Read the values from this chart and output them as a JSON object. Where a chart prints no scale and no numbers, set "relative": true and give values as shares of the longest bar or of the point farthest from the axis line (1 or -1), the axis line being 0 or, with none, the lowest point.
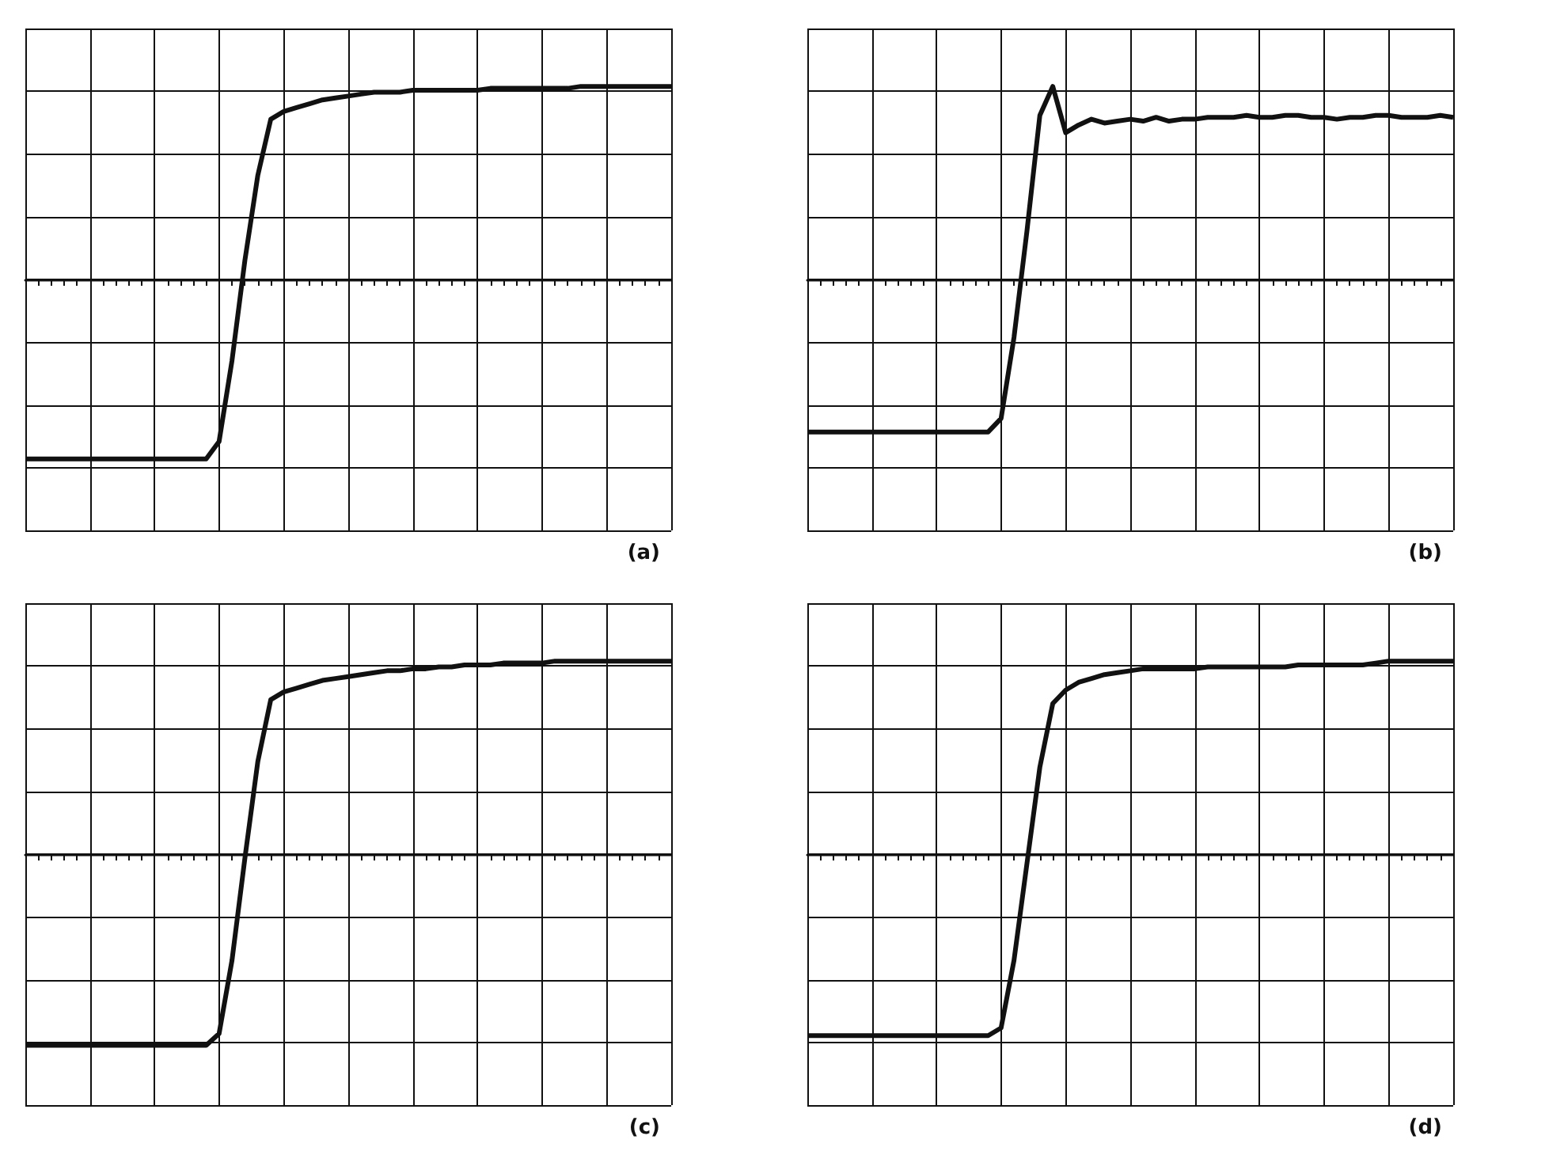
{
  "chart_data": [
    {
      "type": "line",
      "title": "(a)",
      "relative": true,
      "grid": true,
      "marker": "none",
      "categories": [
        null,
        null,
        null,
        null,
        null,
        null,
        null,
        null,
        null,
        null,
        null,
        null,
        null,
        null,
        null,
        null,
        null,
        null,
        null,
        null,
        null,
        null,
        null,
        null,
        null,
        null,
        null,
        null,
        null,
        null,
        null,
        null,
        null,
        null,
        null,
        null,
        null,
        null,
        null,
        null,
        null,
        null,
        null,
        null,
        null,
        null,
        null,
        null,
        null,
        null,
        null
      ],
      "series": [
        {
          "color": "#111111",
          "values": [
            -0.93,
            -0.93,
            -0.93,
            -0.93,
            -0.93,
            -0.93,
            -0.93,
            -0.93,
            -0.93,
            -0.93,
            -0.93,
            -0.93,
            -0.93,
            -0.93,
            -0.93,
            -0.84,
            -0.42,
            0.1,
            0.54,
            0.83,
            0.87,
            0.89,
            0.91,
            0.93,
            0.94,
            0.95,
            0.96,
            0.97,
            0.97,
            0.97,
            0.98,
            0.98,
            0.98,
            0.98,
            0.98,
            0.98,
            0.99,
            0.99,
            0.99,
            0.99,
            0.99,
            0.99,
            0.99,
            1.0,
            1.0,
            1.0,
            1.0,
            1.0,
            1.0,
            1.0,
            1.0
          ]
        }
      ]
    },
    {
      "type": "line",
      "title": "(b)",
      "relative": true,
      "grid": true,
      "marker": "none",
      "categories": [
        null,
        null,
        null,
        null,
        null,
        null,
        null,
        null,
        null,
        null,
        null,
        null,
        null,
        null,
        null,
        null,
        null,
        null,
        null,
        null,
        null,
        null,
        null,
        null,
        null,
        null,
        null,
        null,
        null,
        null,
        null,
        null,
        null,
        null,
        null,
        null,
        null,
        null,
        null,
        null,
        null,
        null,
        null,
        null,
        null,
        null,
        null,
        null,
        null,
        null,
        null
      ],
      "series": [
        {
          "color": "#111111",
          "values": [
            -0.79,
            -0.79,
            -0.79,
            -0.79,
            -0.79,
            -0.79,
            -0.79,
            -0.79,
            -0.79,
            -0.79,
            -0.79,
            -0.79,
            -0.79,
            -0.79,
            -0.79,
            -0.72,
            -0.3,
            0.25,
            0.85,
            1.0,
            0.76,
            0.8,
            0.83,
            0.81,
            0.82,
            0.83,
            0.82,
            0.84,
            0.82,
            0.83,
            0.83,
            0.84,
            0.84,
            0.84,
            0.85,
            0.84,
            0.84,
            0.85,
            0.85,
            0.84,
            0.84,
            0.83,
            0.84,
            0.84,
            0.85,
            0.85,
            0.84,
            0.84,
            0.84,
            0.85,
            0.84
          ]
        }
      ]
    },
    {
      "type": "line",
      "title": "(c)",
      "relative": true,
      "grid": true,
      "marker": "none",
      "categories": [
        null,
        null,
        null,
        null,
        null,
        null,
        null,
        null,
        null,
        null,
        null,
        null,
        null,
        null,
        null,
        null,
        null,
        null,
        null,
        null,
        null,
        null,
        null,
        null,
        null,
        null,
        null,
        null,
        null,
        null,
        null,
        null,
        null,
        null,
        null,
        null,
        null,
        null,
        null,
        null,
        null,
        null,
        null,
        null,
        null,
        null,
        null,
        null,
        null,
        null,
        null
      ],
      "series": [
        {
          "color": "#111111",
          "values": [
            -0.99,
            -0.99,
            -0.99,
            -0.99,
            -0.99,
            -0.99,
            -0.99,
            -0.99,
            -0.99,
            -0.99,
            -0.99,
            -0.99,
            -0.99,
            -0.99,
            -0.99,
            -0.93,
            -0.55,
            -0.02,
            0.48,
            0.8,
            0.84,
            0.86,
            0.88,
            0.9,
            0.91,
            0.92,
            0.93,
            0.94,
            0.95,
            0.95,
            0.96,
            0.96,
            0.97,
            0.97,
            0.98,
            0.98,
            0.98,
            0.99,
            0.99,
            0.99,
            0.99,
            1.0,
            1.0,
            1.0,
            1.0,
            1.0,
            1.0,
            1.0,
            1.0,
            1.0,
            1.0
          ]
        }
      ]
    },
    {
      "type": "line",
      "title": "(d)",
      "relative": true,
      "grid": true,
      "marker": "none",
      "categories": [
        null,
        null,
        null,
        null,
        null,
        null,
        null,
        null,
        null,
        null,
        null,
        null,
        null,
        null,
        null,
        null,
        null,
        null,
        null,
        null,
        null,
        null,
        null,
        null,
        null,
        null,
        null,
        null,
        null,
        null,
        null,
        null,
        null,
        null,
        null,
        null,
        null,
        null,
        null,
        null,
        null,
        null,
        null,
        null,
        null,
        null,
        null,
        null,
        null,
        null,
        null
      ],
      "series": [
        {
          "color": "#111111",
          "values": [
            -0.94,
            -0.94,
            -0.94,
            -0.94,
            -0.94,
            -0.94,
            -0.94,
            -0.94,
            -0.94,
            -0.94,
            -0.94,
            -0.94,
            -0.94,
            -0.94,
            -0.94,
            -0.9,
            -0.55,
            -0.05,
            0.45,
            0.78,
            0.85,
            0.89,
            0.91,
            0.93,
            0.94,
            0.95,
            0.96,
            0.96,
            0.96,
            0.96,
            0.96,
            0.97,
            0.97,
            0.97,
            0.97,
            0.97,
            0.97,
            0.97,
            0.98,
            0.98,
            0.98,
            0.98,
            0.98,
            0.98,
            0.99,
            1.0,
            1.0,
            1.0,
            1.0,
            1.0,
            1.0
          ]
        }
      ]
    }
  ]
}
